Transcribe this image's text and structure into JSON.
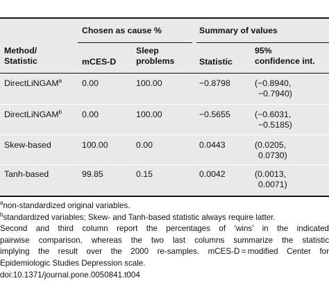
{
  "table": {
    "group_headers": {
      "chosen": "Chosen as cause %",
      "summary": "Summary of values"
    },
    "columns": {
      "method_line1": "Method/",
      "method_line2": "Statistic",
      "mcesd": "mCES-D",
      "sleep_line1": "Sleep",
      "sleep_line2": "problems",
      "statistic": "Statistic",
      "ci_line1": "95%",
      "ci_line2": "confidence int."
    },
    "rows": [
      {
        "method": "DirectLiNGAM",
        "sup": "a",
        "mcesd": "0.00",
        "sleep": "100.00",
        "statistic": "−0.8798",
        "ci_line1": "(−0.8940,",
        "ci_line2": "−0.7940)"
      },
      {
        "method": "DirectLiNGAM",
        "sup": "b",
        "mcesd": "0.00",
        "sleep": "100.00",
        "statistic": "−0.5655",
        "ci_line1": "(−0.6031,",
        "ci_line2": "−0.5185)"
      },
      {
        "method": "Skew-based",
        "sup": "",
        "mcesd": "100.00",
        "sleep": "0.00",
        "statistic": "0.0443",
        "ci_line1": "(0.0205,",
        "ci_line2": "0.0730)"
      },
      {
        "method": "Tanh-based",
        "sup": "",
        "mcesd": "99.85",
        "sleep": "0.15",
        "statistic": "0.0042",
        "ci_line1": "(0.0013,",
        "ci_line2": "0.0071)"
      }
    ]
  },
  "footnotes": {
    "a_marker": "a",
    "a_text": "non-standardized original variables.",
    "b_marker": "b",
    "b_text": "standardized variables; Skew- and Tanh-based statistic always require latter.",
    "note_lines": [
      "Second and third column report the percentages of ‘wins’ in the indicated",
      "pairwise comparison, whereas the two last columns summarize the statistic",
      "implying the result over the 2000 re-samples. mCES-D = modified Center for",
      "Epidemiologic Studies Depression scale."
    ],
    "doi": "doi:10.1371/journal.pone.0050841.t004"
  }
}
